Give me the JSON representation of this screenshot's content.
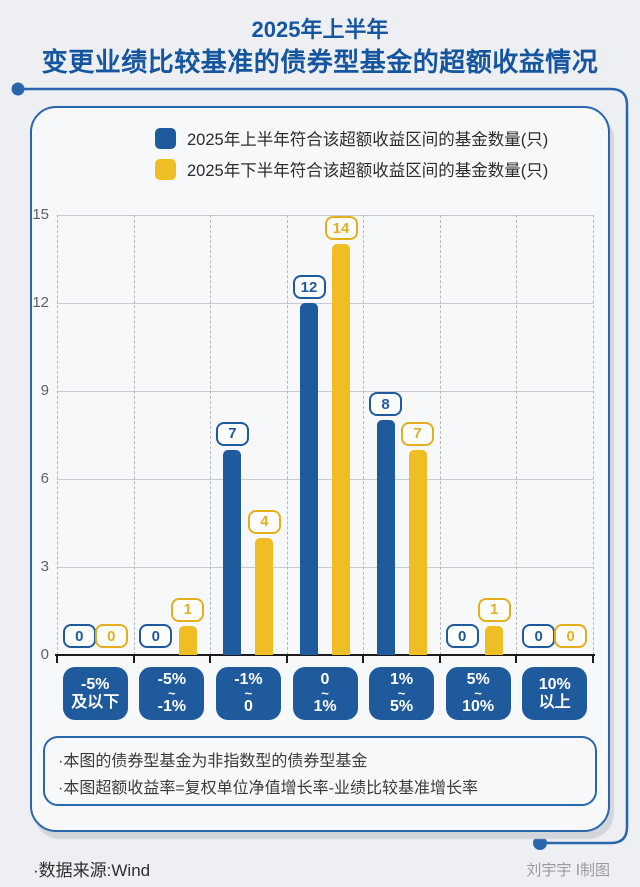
{
  "title": {
    "line1": "2025年上半年",
    "line2": "变更业绩比较基准的债券型基金的超额收益情况"
  },
  "chart_data": {
    "type": "bar",
    "title": "2025年上半年变更业绩比较基准的债券型基金的超额收益情况",
    "categories": [
      "-5%及以下",
      "-5%~-1%",
      "-1%~0",
      "0~1%",
      "1%~5%",
      "5%~10%",
      "10%以上"
    ],
    "category_pill_lines": [
      [
        "-5%",
        "及以下"
      ],
      [
        "-5%",
        "~",
        "-1%"
      ],
      [
        "-1%",
        "~",
        "0"
      ],
      [
        "0",
        "~",
        "1%"
      ],
      [
        "1%",
        "~",
        "5%"
      ],
      [
        "5%",
        "~",
        "10%"
      ],
      [
        "10%",
        "以上"
      ]
    ],
    "series": [
      {
        "name": "2025年上半年符合该超额收益区间的基金数量(只)",
        "color": "#1e5a9c",
        "label_color": "#1e5a9c",
        "values": [
          0,
          0,
          7,
          12,
          8,
          0,
          0
        ]
      },
      {
        "name": "2025年下半年符合该超额收益区间的基金数量(只)",
        "color": "#efbd24",
        "label_color": "#e4af1d",
        "values": [
          0,
          1,
          4,
          14,
          7,
          1,
          0
        ]
      }
    ],
    "ylim": [
      0,
      15
    ],
    "yticks": [
      0,
      3,
      6,
      9,
      12,
      15
    ],
    "grid": true,
    "legend_position": "top"
  },
  "footnotes": [
    "·本图的债券型基金为非指数型的债券型基金",
    "·本图超额收益率=复权单位净值增长率-业绩比较基准增长率"
  ],
  "source": "·数据来源:Wind",
  "credit": "刘宇宇 Ⅰ制图",
  "colors": {
    "accent_blue": "#15569f",
    "border_blue": "#2b66ad",
    "bar_blue": "#1e5a9c",
    "bar_yellow": "#efbd24",
    "pill_blue": "#1e5a9c"
  }
}
